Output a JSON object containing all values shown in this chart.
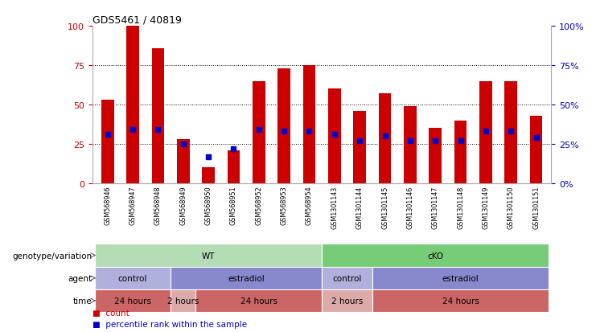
{
  "title": "GDS5461 / 40819",
  "samples": [
    "GSM568946",
    "GSM568947",
    "GSM568948",
    "GSM568949",
    "GSM568950",
    "GSM568951",
    "GSM568952",
    "GSM568953",
    "GSM568954",
    "GSM1301143",
    "GSM1301144",
    "GSM1301145",
    "GSM1301146",
    "GSM1301147",
    "GSM1301148",
    "GSM1301149",
    "GSM1301150",
    "GSM1301151"
  ],
  "red_values": [
    53,
    100,
    86,
    28,
    10,
    21,
    65,
    73,
    75,
    60,
    46,
    57,
    49,
    35,
    40,
    65,
    65,
    43
  ],
  "blue_values": [
    31,
    34,
    34,
    25,
    17,
    22,
    34,
    33,
    33,
    31,
    27,
    30,
    27,
    27,
    27,
    33,
    33,
    29
  ],
  "ylim": [
    0,
    100
  ],
  "yticks": [
    0,
    25,
    50,
    75,
    100
  ],
  "bar_color": "#cc0000",
  "blue_color": "#0000cc",
  "axis_label_color_left": "#cc0000",
  "axis_label_color_right": "#0000cc",
  "xtick_bg": "#d8d8d8",
  "genotype_row": {
    "label": "genotype/variation",
    "groups": [
      {
        "text": "WT",
        "start": 0,
        "end": 9,
        "color": "#b5ddb5"
      },
      {
        "text": "cKO",
        "start": 9,
        "end": 18,
        "color": "#77cc77"
      }
    ]
  },
  "agent_row": {
    "label": "agent",
    "groups": [
      {
        "text": "control",
        "start": 0,
        "end": 3,
        "color": "#b0b0dd"
      },
      {
        "text": "estradiol",
        "start": 3,
        "end": 9,
        "color": "#8888cc"
      },
      {
        "text": "control",
        "start": 9,
        "end": 11,
        "color": "#b0b0dd"
      },
      {
        "text": "estradiol",
        "start": 11,
        "end": 18,
        "color": "#8888cc"
      }
    ]
  },
  "time_row": {
    "label": "time",
    "groups": [
      {
        "text": "24 hours",
        "start": 0,
        "end": 3,
        "color": "#cc6666"
      },
      {
        "text": "2 hours",
        "start": 3,
        "end": 4,
        "color": "#ddaaaa"
      },
      {
        "text": "24 hours",
        "start": 4,
        "end": 9,
        "color": "#cc6666"
      },
      {
        "text": "2 hours",
        "start": 9,
        "end": 11,
        "color": "#ddaaaa"
      },
      {
        "text": "24 hours",
        "start": 11,
        "end": 18,
        "color": "#cc6666"
      }
    ]
  },
  "legend_items": [
    {
      "label": "count",
      "color": "#cc0000"
    },
    {
      "label": "percentile rank within the sample",
      "color": "#0000cc"
    }
  ]
}
